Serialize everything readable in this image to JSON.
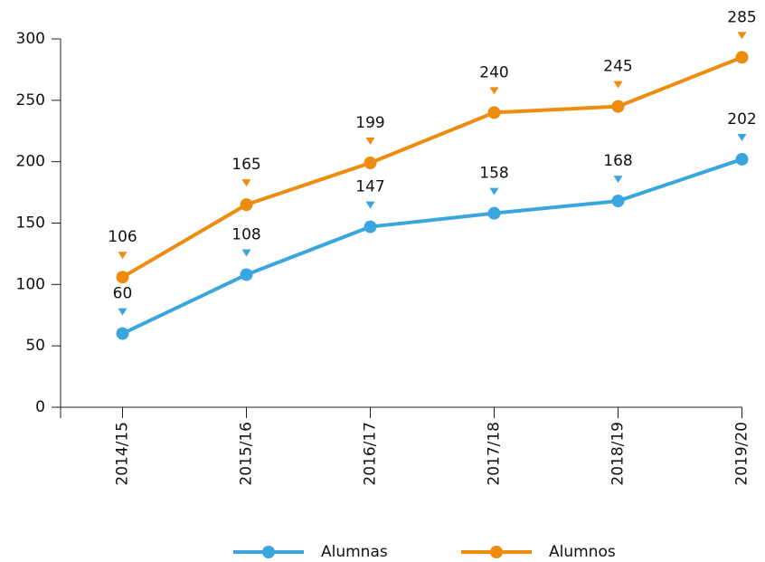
{
  "chart_data": {
    "type": "line",
    "categories": [
      "2014/15",
      "2015/16",
      "2016/17",
      "2017/18",
      "2018/19",
      "2019/20"
    ],
    "series": [
      {
        "name": "Alumnas",
        "color": "#3aa6dd",
        "values": [
          60,
          108,
          147,
          158,
          168,
          202
        ]
      },
      {
        "name": "Alumnos",
        "color": "#ee8c10",
        "values": [
          106,
          165,
          199,
          240,
          245,
          285
        ]
      }
    ],
    "ylim": [
      0,
      300
    ],
    "yticks": [
      0,
      50,
      100,
      150,
      200,
      250,
      300
    ],
    "grid": false,
    "legend": "bottom"
  }
}
